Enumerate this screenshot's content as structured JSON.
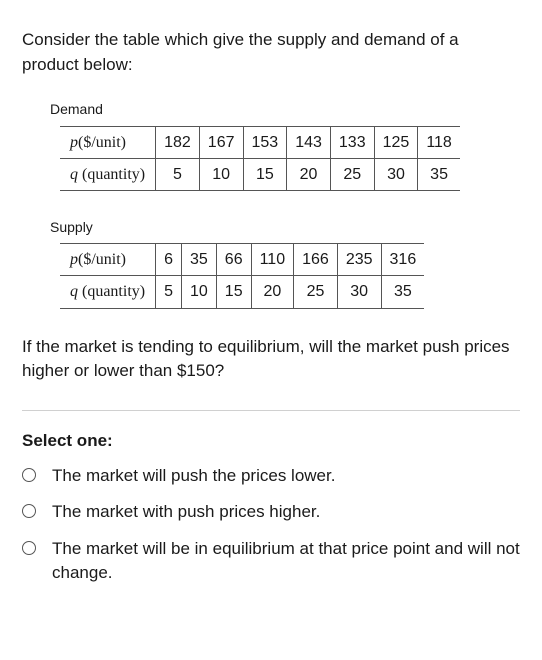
{
  "intro": "Consider the table which give the supply and demand of a product below:",
  "demand": {
    "label": "Demand",
    "rows": [
      {
        "header": "p($/unit)",
        "cells": [
          "182",
          "167",
          "153",
          "143",
          "133",
          "125",
          "118"
        ]
      },
      {
        "header": "q (quantity)",
        "cells": [
          "5",
          "10",
          "15",
          "20",
          "25",
          "30",
          "35"
        ]
      }
    ]
  },
  "supply": {
    "label": "Supply",
    "rows": [
      {
        "header": "p($/unit)",
        "cells": [
          "6",
          "35",
          "66",
          "110",
          "166",
          "235",
          "316"
        ]
      },
      {
        "header": "q (quantity)",
        "cells": [
          "5",
          "10",
          "15",
          "20",
          "25",
          "30",
          "35"
        ]
      }
    ]
  },
  "question": "If the market is tending to equilibrium, will the market push prices higher or lower than $150?",
  "select_label": "Select one:",
  "options": [
    "The market will push the prices lower.",
    "The market with push prices higher.",
    "The market will be in equilibrium at that price point and will not change."
  ],
  "colors": {
    "text": "#1a1a1a",
    "border": "#555555",
    "separator": "#d0d0d0",
    "background": "#ffffff"
  }
}
